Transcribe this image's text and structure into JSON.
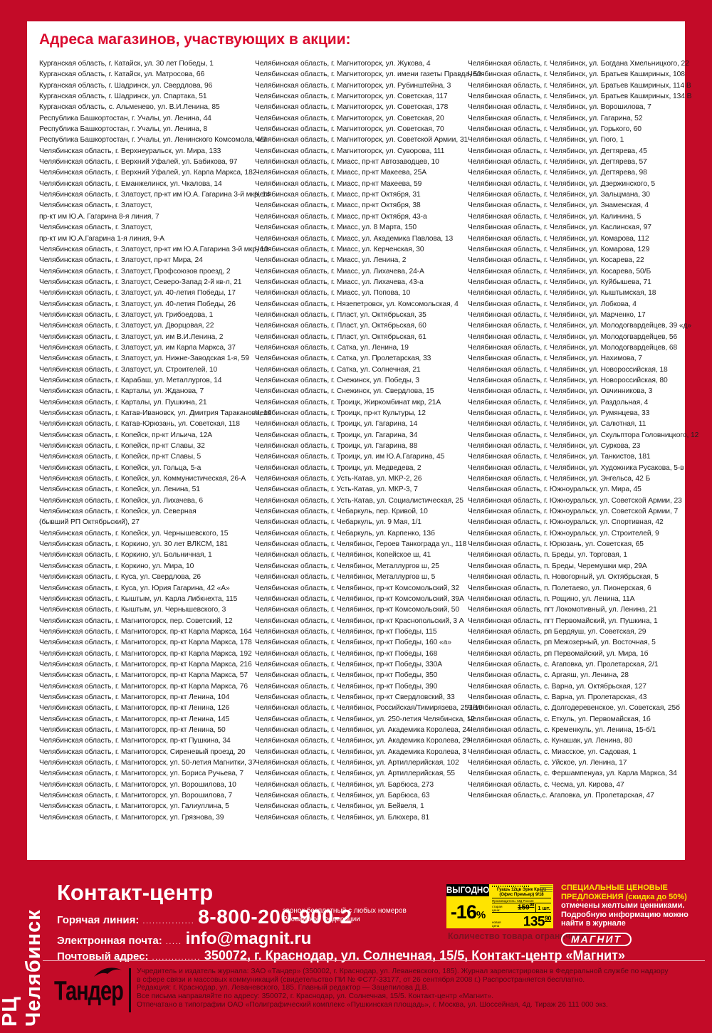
{
  "page": {
    "title": "Адреса магазинов, участвующих в акции:",
    "sidebar_label": "РЦ Челябинск"
  },
  "colors": {
    "frame_red": "#c30b28",
    "title_red": "#da0a2e",
    "tag_yellow": "#ffe400",
    "promo_yellow": "#ffe400"
  },
  "columns": {
    "col1": [
      "Курганская область, г. Катайск, ул. 30 лет Победы, 1",
      "Курганская область, г. Катайск, ул. Матросова, 66",
      "Курганская область, г. Шадринск, ул. Свердлова, 96",
      "Курганская область, г. Шадринск, ул. Спартака, 51",
      "Курганская область, с. Альменево, ул. В.И.Ленина, 85",
      "Республика Башкортостан, г. Учалы, ул. Ленина, 44",
      "Республика Башкортостан, г. Учалы, ул. Ленина, 8",
      "Республика Башкортостан, г. Учалы, ул. Ленинского Комсомола, 4/3",
      "Челябинская область, г. Верхнеуральск, ул. Мира, 133",
      "Челябинская область, г. Верхний Уфалей, ул. Бабикова, 97",
      "Челябинская область, г. Верхний Уфалей, ул. Карла Маркса, 182",
      "Челябинская область, г. Еманжелинск, ул. Чкалова, 14",
      "Челябинская область, г. Златоуст, пр-кт им Ю.А. Гагарина 3-й мкр, 14",
      "Челябинская область, г. Златоуст,",
      "пр-кт им Ю.А. Гагарина 8-я линия, 7",
      "Челябинская область, г. Златоуст,",
      "пр-кт им Ю.А.Гагарина 1-я линия, 9-А",
      "Челябинская область, г. Златоуст, пр-кт им Ю.А.Гагарина 3-й мкр, 10",
      "Челябинская область, г. Златоуст, пр-кт Мира, 24",
      "Челябинская область, г. Златоуст, Профсоюзов проезд, 2",
      "Челябинская область, г. Златоуст, Северо-Запад 2-й кв-л, 21",
      "Челябинская область, г. Златоуст, ул. 40-летия Победы, 17",
      "Челябинская область, г. Златоуст, ул. 40-летия Победы, 26",
      "Челябинская область, г. Златоуст, ул. Грибоедова, 1",
      "Челябинская область, г. Златоуст, ул. Дворцовая, 22",
      "Челябинская область, г. Златоуст, ул. им В.И.Ленина, 2",
      "Челябинская область, г. Златоуст, ул. им Карла Маркса, 37",
      "Челябинская область, г. Златоуст, ул. Нижне-Заводская 1-я, 59",
      "Челябинская область, г. Златоуст, ул. Строителей, 10",
      "Челябинская область, г. Карабаш, ул. Металлургов, 14",
      "Челябинская область, г. Карталы, ул. Жданова, 7",
      "Челябинская область, г. Карталы, ул. Пушкина, 21",
      "Челябинская область, г. Катав-Ивановск, ул. Дмитрия Тараканова, 16",
      "Челябинская область, г. Катав-Юрюзань, ул. Советская, 118",
      "Челябинская область, г. Копейск, пр-кт Ильича, 12А",
      "Челябинская область, г. Копейск, пр-кт Славы, 32",
      "Челябинская область, г. Копейск, пр-кт Славы, 5",
      "Челябинская область, г. Копейск, ул. Гольца, 5-а",
      "Челябинская область, г. Копейск, ул. Коммунистическая, 26-А",
      "Челябинская область, г. Копейск, ул. Ленина, 51",
      "Челябинская область, г. Копейск, ул. Лихачева, 6",
      "Челябинская область, г. Копейск, ул. Северная",
      "(бывший РП Октябрьский), 27",
      "Челябинская область, г. Копейск, ул. Чернышевского, 15",
      "Челябинская область, г. Коркино, ул. 30 лет ВЛКСМ, 181",
      "Челябинская область, г. Коркино, ул. Больничная, 1",
      "Челябинская область, г. Коркино, ул. Мира, 10",
      "Челябинская область, г. Куса, ул. Свердлова, 26",
      "Челябинская область, г. Куса, ул. Юрия Гагарина, 42 «А»",
      "Челябинская область, г. Кыштым, ул. Карла Либкнехта, 115",
      "Челябинская область, г. Кыштым, ул. Чернышевского, 3",
      "Челябинская область, г. Магнитогорск, пер. Советский, 12",
      "Челябинская область, г. Магнитогорск, пр-кт Карла Маркса, 164",
      "Челябинская область, г. Магнитогорск, пр-кт Карла Маркса, 178",
      "Челябинская область, г. Магнитогорск, пр-кт Карла Маркса, 192",
      "Челябинская область, г. Магнитогорск, пр-кт Карла Маркса, 216",
      "Челябинская область, г. Магнитогорск, пр-кт Карла Маркса, 57",
      "Челябинская область, г. Магнитогорск, пр-кт Карла Маркса, 76",
      "Челябинская область, г. Магнитогорск, пр-кт Ленина, 104",
      "Челябинская область, г. Магнитогорск, пр-кт Ленина, 126",
      "Челябинская область, г. Магнитогорск, пр-кт Ленина, 145",
      "Челябинская область, г. Магнитогорск, пр-кт Ленина, 50",
      "Челябинская область, г. Магнитогорск, пр-кт Пушкина, 34",
      "Челябинская область, г. Магнитогорск, Сиреневый проезд, 20",
      "Челябинская область, г. Магнитогорск, ул. 50-летия Магнитки, 37",
      "Челябинская область, г. Магнитогорск, ул. Бориса Ручьева, 7",
      "Челябинская область, г. Магнитогорск, ул. Ворошилова, 10",
      "Челябинская область, г. Магнитогорск, ул. Ворошилова, 7",
      "Челябинская область, г. Магнитогорск, ул. Галиуллина, 5",
      "Челябинская область, г. Магнитогорск, ул. Грязнова, 39"
    ],
    "col2": [
      "Челябинская область, г. Магнитогорск, ул. Жукова, 4",
      "Челябинская область, г. Магнитогорск, ул. имени газеты Правда, 50",
      "Челябинская область, г. Магнитогорск, ул. Рубинштейна, 3",
      "Челябинская область, г. Магнитогорск, ул. Советская, 117",
      "Челябинская область, г. Магнитогорск, ул. Советская, 178",
      "Челябинская область, г. Магнитогорск, ул. Советская, 20",
      "Челябинская область, г. Магнитогорск, ул. Советская, 70",
      "Челябинская область, г. Магнитогорск, ул. Советской Армии, 31",
      "Челябинская область, г. Магнитогорск, ул. Суворова, 111",
      "Челябинская область, г. Миасс, пр-кт Автозаводцев, 10",
      "Челябинская область, г. Миасс, пр-кт Макеева, 25А",
      "Челябинская область, г. Миасс, пр-кт Макеева, 59",
      "Челябинская область, г. Миасс, пр-кт Октября, 31",
      "Челябинская область, г. Миасс, пр-кт Октября, 38",
      "Челябинская область, г. Миасс, пр-кт Октября, 43-а",
      "Челябинская область, г. Миасс, ул. 8 Марта, 150",
      "Челябинская область, г. Миасс, ул. Академика Павлова, 13",
      "Челябинская область, г. Миасс, ул. Керченская, 30",
      "Челябинская область, г. Миасс, ул. Ленина, 2",
      "Челябинская область, г. Миасс, ул. Лихачева, 24-А",
      "Челябинская область, г. Миасс, ул. Лихачева, 43-а",
      "Челябинская область, г. Миасс, ул. Попова, 10",
      "Челябинская область, г. Нязепетровск, ул. Комсомольская, 4",
      "Челябинская область, г. Пласт, ул. Октябрьская, 35",
      "Челябинская область, г. Пласт, ул. Октябрьская, 60",
      "Челябинская область, г. Пласт, ул. Октябрьская, 61",
      "Челябинская область, г. Сатка, ул. Ленина, 19",
      "Челябинская область, г. Сатка, ул. Пролетарская, 33",
      "Челябинская область, г. Сатка, ул. Солнечная, 21",
      "Челябинская область, г. Снежинск, ул. Победы, 3",
      "Челябинская область, г. Снежинск, ул. Свердлова, 15",
      "Челябинская область, г. Троицк, Жиркомбинат мкр, 21А",
      "Челябинская область, г. Троицк, пр-кт Культуры, 12",
      "Челябинская область, г. Троицк, ул. Гагарина, 14",
      "Челябинская область, г. Троицк, ул. Гагарина, 34",
      "Челябинская область, г. Троицк, ул. Гагарина, 88",
      "Челябинская область, г. Троицк, ул. им Ю.А.Гагарина, 45",
      "Челябинская область, г. Троицк, ул. Медведева, 2",
      "Челябинская область, г. Усть-Катав, ул. МКР-2, 26",
      "Челябинская область, г. Усть-Катав, ул. МКР-3, 7",
      "Челябинская область, г. Усть-Катав, ул. Социалистическая, 25",
      "Челябинская область, г. Чебаркуль, пер. Кривой, 10",
      "Челябинская область, г. Чебаркуль, ул. 9 Мая, 1/1",
      "Челябинская область, г. Чебаркуль, ул. Карпенко, 13б",
      "Челябинская область, г. Челябинск, Героев Танкограда ул., 118",
      "Челябинская область, г. Челябинск, Копейское ш, 41",
      "Челябинская область, г. Челябинск, Металлургов ш, 25",
      "Челябинская область, г. Челябинск, Металлургов ш, 5",
      "Челябинская область, г. Челябинск, пр-кт Комсомольский, 32",
      "Челябинская область, г. Челябинск, пр-кт Комсомольский, 39А",
      "Челябинская область, г. Челябинск, пр-кт Комсомольский, 50",
      "Челябинская область, г. Челябинск, пр-кт Краснопольский, 3 А",
      "Челябинская область, г. Челябинск, пр-кт Победы, 115",
      "Челябинская область, г. Челябинск, пр-кт Победы, 160 «а»",
      "Челябинская область, г. Челябинск, пр-кт Победы, 168",
      "Челябинская область, г. Челябинск, пр-кт Победы, 330А",
      "Челябинская область, г. Челябинск, пр-кт Победы, 350",
      "Челябинская область, г. Челябинск, пр-кт Победы, 390",
      "Челябинская область, г. Челябинск, пр-кт Свердловский, 33",
      "Челябинская область, г. Челябинск, Российская/Тимирязева, 251/10",
      "Челябинская область, г. Челябинск, ул. 250-летия Челябинска, 12",
      "Челябинская область, г. Челябинск, ул. Академика Королева, 24",
      "Челябинская область, г. Челябинск, ул. Академика Королева, 29",
      "Челябинская область, г. Челябинск, ул. Академика Королева, 3",
      "Челябинская область, г. Челябинск, ул. Артиллерийская, 102",
      "Челябинская область, г. Челябинск, ул. Артиллерийская, 55",
      "Челябинская область, г. Челябинск, ул. Барбюса, 273",
      "Челябинская область, г. Челябинск, ул. Барбюса, 63",
      "Челябинская область, г. Челябинск, ул. Бейвеля, 1",
      "Челябинская область, г. Челябинск, ул. Блюхера, 81"
    ],
    "col3": [
      "Челябинская область, г. Челябинск, ул. Богдана Хмельницкого, 22",
      "Челябинская область, г. Челябинск, ул. Братьев Кашириных, 108",
      "Челябинская область, г. Челябинск, ул. Братьев Кашириных, 114 В",
      "Челябинская область, г. Челябинск, ул. Братьев Кашириных, 134 В",
      "Челябинская область, г. Челябинск, ул. Ворошилова, 7",
      "Челябинская область, г. Челябинск, ул. Гагарина, 52",
      "Челябинская область, г. Челябинск, ул. Горького, 60",
      "Челябинская область, г. Челябинск, ул. Гюго, 1",
      "Челябинская область, г. Челябинск, ул. Дегтярева, 45",
      "Челябинская область, г. Челябинск, ул. Дегтярева, 57",
      "Челябинская область, г. Челябинск, ул. Дегтярева, 98",
      "Челябинская область, г. Челябинск, ул. Дзержинского, 5",
      "Челябинская область, г. Челябинск, ул. Зальцмана, 30",
      "Челябинская область, г. Челябинск, ул. Знаменская, 4",
      "Челябинская область, г. Челябинск, ул. Калинина, 5",
      "Челябинская область, г. Челябинск, ул. Каслинская, 97",
      "Челябинская область, г. Челябинск, ул. Комарова, 112",
      "Челябинская область, г. Челябинск, ул. Комарова, 129",
      "Челябинская область, г. Челябинск, ул. Косарева, 22",
      "Челябинская область, г. Челябинск, ул. Косарева, 50/Б",
      "Челябинская область, г. Челябинск, ул. Куйбышева, 71",
      "Челябинская область, г. Челябинск, ул. Кыштымская, 18",
      "Челябинская область, г. Челябинск, ул. Лобкова, 4",
      "Челябинская область, г. Челябинск, ул. Марченко, 17",
      "Челябинская область, г. Челябинск, ул. Молодогвардейцев, 39 «д»",
      "Челябинская область, г. Челябинск, ул. Молодогвардейцев, 56",
      "Челябинская область, г. Челябинск, ул. Молодогвардейцев, 68",
      "Челябинская область, г. Челябинск, ул. Нахимова, 7",
      "Челябинская область, г. Челябинск, ул. Новороссийская, 18",
      "Челябинская область, г. Челябинск, ул. Новороссийская, 80",
      "Челябинская область, г. Челябинск, ул. Овчинникова, 3",
      "Челябинская область, г. Челябинск, ул. Раздольная, 4",
      "Челябинская область, г. Челябинск, ул. Румянцева, 33",
      "Челябинская область, г. Челябинск, ул. Салютная, 11",
      "Челябинская область, г. Челябинск, ул. Скульптора Головницкого, 12",
      "Челябинская область, г. Челябинск, ул. Суркова, 23",
      "Челябинская область, г. Челябинск, ул. Танкистов, 181",
      "Челябинская область, г. Челябинск, ул. Художника Русакова, 5-в",
      "Челябинская область, г. Челябинск, ул. Энгельса, 42 Б",
      "Челябинская область, г. Южноуральск, ул. Мира, 45",
      "Челябинская область, г. Южноуральск, ул. Советской Армии, 23",
      "Челябинская область, г. Южноуральск, ул. Советской Армии, 7",
      "Челябинская область, г. Южноуральск, ул. Спортивная, 42",
      "Челябинская область, г. Южноуральск, ул. Строителей, 9",
      "Челябинская область, г. Юрюзань, ул. Советская, 65",
      "Челябинская область, п. Бреды, ул. Торговая, 1",
      "Челябинская область, п. Бреды, Черемушки мкр, 29А",
      "Челябинская область, п. Новогорный, ул. Октябрьская, 5",
      "Челябинская область, п. Полетаево, ул. Пионерская, 6",
      "Челябинская область, п. Рощино, ул. Ленина, 11А",
      "Челябинская область, пгт Локомотивный, ул. Ленина, 21",
      "Челябинская область, пгт Первомайский, ул. Пушкина, 1",
      "Челябинская область, рп Бердяуш, ул. Советская, 29",
      "Челябинская область, рп Межозерный, ул. Восточная, 5",
      "Челябинская область, рп Первомайский, ул. Мира, 1б",
      "Челябинская область, с. Агаповка, ул. Пролетарская, 2/1",
      "Челябинская область, с. Аргаяш, ул. Ленина, 28",
      "Челябинская область, с. Варна, ул. Октябрьская, 127",
      "Челябинская область, с. Варна, ул. Пролетарская, 43",
      "Челябинская область, с. Долгодеревенское, ул. Советская, 25б",
      "Челябинская область, с. Еткуль, ул. Первомайская, 1б",
      "Челябинская область, с. Кременкуль, ул. Ленина, 15-б/1",
      "Челябинская область, с. Кунашак, ул. Ленина, 80",
      "Челябинская область, с. Миасское, ул. Садовая, 1",
      "Челябинская область, с. Уйское, ул. Ленина, 17",
      "Челябинская область, с. Фершампенуаз, ул. Карла Маркса, 34",
      "Челябинская область, с. Чесма, ул. Кирова, 47",
      "Челябинская область,с. Агаповка, ул. Пролетарская, 47"
    ]
  },
  "footer": {
    "contact_title": "Контакт-центр",
    "hotline_label": "Горячая линия:",
    "hotline_dots": "................",
    "hotline_number": "8-800-200-900-2",
    "hotline_note": "звонок бесплатный с любых номеров Российской Федерации",
    "email_label": "Электронная почта:",
    "email_dots": ".....",
    "email_value": "info@magnit.ru",
    "postal_label": "Почтовый адрес:",
    "postal_dots": "...............",
    "postal_value": "350072, г. Краснодар, ул. Солнечная, 15/5, Контакт-центр «Магнит»",
    "price_tag": {
      "badge": "ВЫГОДНО",
      "discount": "-16",
      "discount_pct": "%",
      "product_line1": "Гуашь 12цв Эрик Крауз",
      "product_line2": "(Офис Премьер) 9/18",
      "producer": "Производитель: МД Россия",
      "old_price_label": "старая цена:",
      "old_price": "159",
      "old_price_kop": "90",
      "qty": "1 шт.",
      "new_price_label": "новая цена",
      "new_price": "135",
      "new_price_kop": "90"
    },
    "qty_note": "Количество товара ограничено",
    "promo_highlight": "СПЕЦИАЛЬНЫЕ ЦЕНОВЫЕ ПРЕДЛОЖЕНИЯ (скидка до 50%)",
    "promo_rest": " отмечены желтыми ценниками. Подробную информацию можно найти  в журнале",
    "brand": "МАГНИТ",
    "tander_logo": "Тандер",
    "legal": [
      "Учредитель и издатель журнала: ЗАО «Тандер» (350002, г. Краснодар, ул. Леваневского, 185). Журнал зарегистрирован в Федеральной службе по надзору",
      "в сфере связи и массовых коммуникаций (свидетельство ПИ № ФС77-33177, от 26 сентября 2008 г.) Распространяется бесплатно.",
      "Редакция: г. Краснодар, ул. Леваневского, 185. Главный редактор — Зацепилова Д.В.",
      "Все письма направляйте по адресу: 350072, г. Краснодар, ул. Солнечная, 15/5. Контакт-центр «Магнит».",
      "Отпечатано в типографии ОАО «Полиграфический комплекс «Пушкинская площадь», г. Москва, ул. Шоссейная, 4д. Тираж 26 111 000 экз."
    ]
  }
}
